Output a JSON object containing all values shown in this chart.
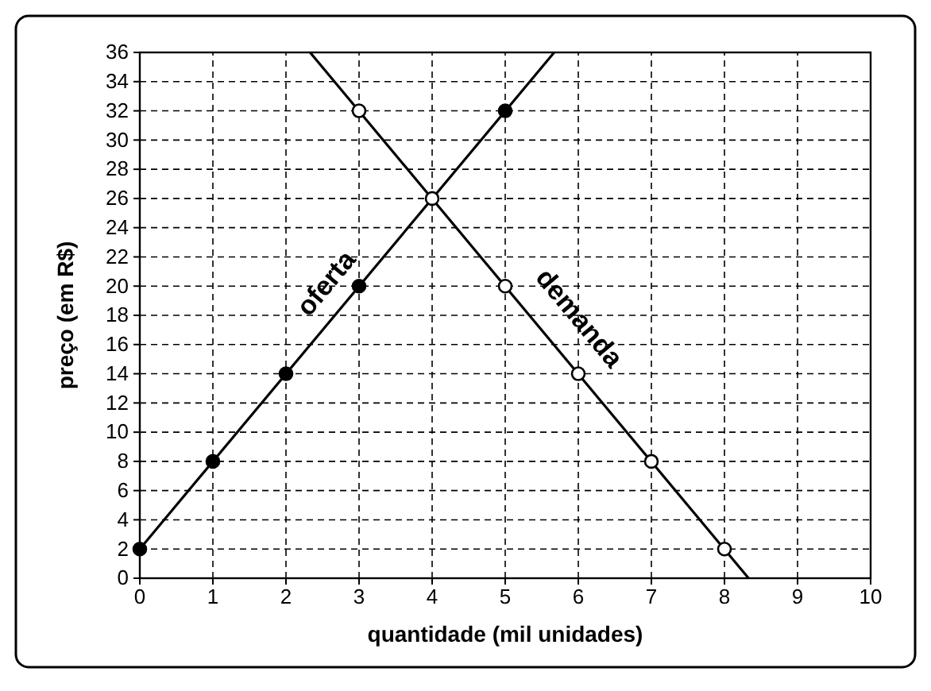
{
  "chart_data": {
    "type": "line",
    "xlabel": "quantidade (mil unidades)",
    "ylabel": "preço (em R$)",
    "xlim": [
      0,
      10
    ],
    "ylim": [
      0,
      36
    ],
    "xticks": [
      0,
      1,
      2,
      3,
      4,
      5,
      6,
      7,
      8,
      9,
      10
    ],
    "yticks": [
      0,
      2,
      4,
      6,
      8,
      10,
      12,
      14,
      16,
      18,
      20,
      22,
      24,
      26,
      28,
      30,
      32,
      34,
      36
    ],
    "grid": true,
    "legend": false,
    "series": [
      {
        "name": "oferta",
        "marker": "none",
        "color": "#000000",
        "x": [
          0,
          5.67
        ],
        "values": [
          2,
          36
        ]
      },
      {
        "name": "demanda",
        "marker": "none",
        "color": "#000000",
        "x": [
          2.33,
          8.33
        ],
        "values": [
          36,
          0
        ]
      },
      {
        "type": "scatter",
        "marker": "circle",
        "color": "#000000",
        "x": [
          0,
          1,
          2,
          3,
          4,
          5
        ],
        "values": [
          2,
          8,
          14,
          20,
          null,
          32
        ]
      },
      {
        "type": "scatter",
        "marker": "circle",
        "color": "#ffffff",
        "x": [
          3,
          4,
          5,
          6,
          7,
          8
        ],
        "values": [
          32,
          26,
          20,
          14,
          8,
          2
        ]
      }
    ]
  }
}
